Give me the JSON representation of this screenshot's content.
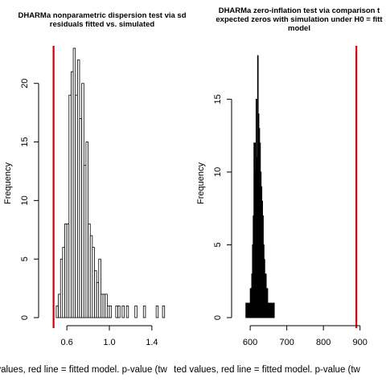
{
  "chart_data": [
    {
      "type": "histogram",
      "title_lines": [
        "DHARMa nonparametric dispersion test via sd",
        "residuals fitted vs. simulated"
      ],
      "xlabel": "ted values, red line = fitted model. p-value (tw",
      "ylabel": "Frequency",
      "xlim": [
        0.44,
        1.56
      ],
      "ylim": [
        0,
        23
      ],
      "xticks": [
        0.6,
        1.0,
        1.4
      ],
      "xtick_labels": [
        "0.6",
        "1.0",
        "1.4"
      ],
      "yticks": [
        0,
        5,
        10,
        15,
        20
      ],
      "ytick_labels": [
        "0",
        "5",
        "10",
        "15",
        "20"
      ],
      "bin_start": 0.5,
      "bin_width": 0.02,
      "counts": [
        1,
        2,
        5,
        6,
        8,
        8,
        19,
        21,
        23,
        19,
        22,
        17,
        20,
        13,
        15,
        8,
        7,
        6,
        4,
        3,
        5,
        2,
        2,
        2,
        1,
        1,
        0,
        0,
        1,
        1,
        0,
        1,
        0,
        1,
        0,
        0,
        0,
        1,
        0,
        0,
        0,
        1,
        0,
        0,
        0,
        0,
        0,
        1,
        0,
        0,
        1
      ],
      "fill": "#ffffff",
      "reference_line": {
        "x": 0.475,
        "color": "#cc0000"
      }
    },
    {
      "type": "histogram",
      "title_lines": [
        "DHARMa zero-inflation test via comparison t",
        "expected zeros with simulation under H0 = fitt",
        "model"
      ],
      "xlabel": "ted values, red line = fitted model. p-value (tw",
      "ylabel": "Frequency",
      "xlim": [
        580,
        905
      ],
      "ylim": [
        0,
        18.5
      ],
      "xticks": [
        600,
        700,
        800,
        900
      ],
      "xtick_labels": [
        "600",
        "700",
        "800",
        "900"
      ],
      "yticks": [
        0,
        5,
        10,
        15
      ],
      "ytick_labels": [
        "0",
        "5",
        "10",
        "15"
      ],
      "bin_start": 588,
      "bin_width": 2,
      "counts": [
        1,
        1,
        1,
        1,
        1,
        1,
        2,
        2,
        3,
        5,
        7,
        12,
        10,
        12,
        15,
        11,
        18,
        14,
        13,
        12,
        10,
        9,
        8,
        7,
        5,
        4,
        3,
        3,
        2,
        2,
        1,
        1,
        1,
        1,
        1,
        1,
        1,
        1,
        1
      ],
      "fill": "#000000",
      "reference_line": {
        "x": 890,
        "color": "#cc0000"
      }
    }
  ]
}
